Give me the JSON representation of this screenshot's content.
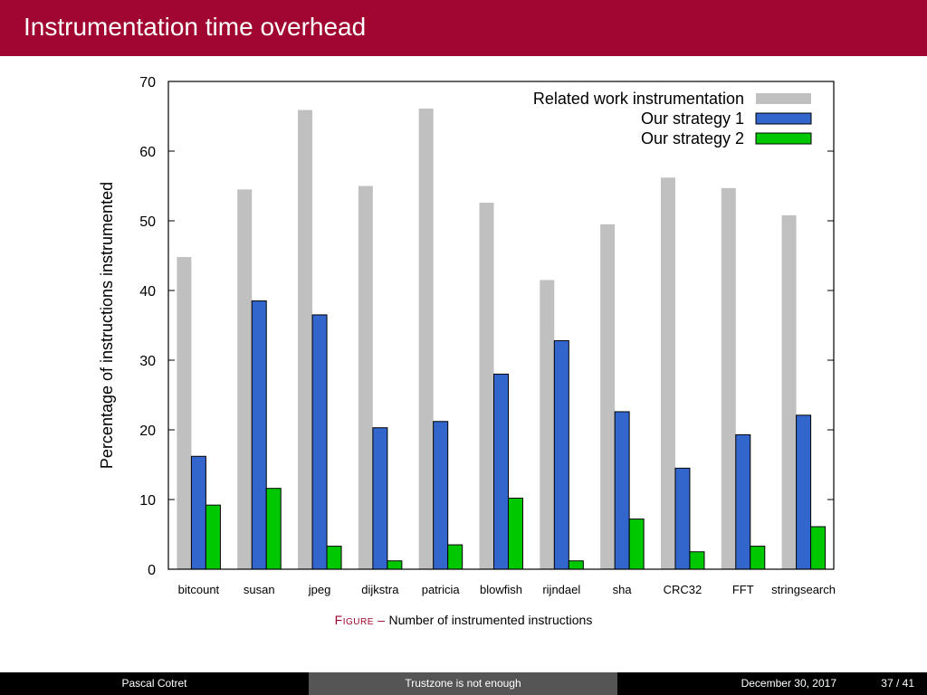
{
  "slide": {
    "title": "Instrumentation time overhead"
  },
  "caption": {
    "label": "Figure –",
    "text": "Number of instrumented instructions"
  },
  "footer": {
    "author": "Pascal Cotret",
    "talk_title": "Trustzone is not enough",
    "date": "December 30, 2017",
    "page": "37 / 41"
  },
  "colors": {
    "header_bg": "#a0062f",
    "related": "#c0c0c0",
    "strategy1": "#3366cc",
    "strategy2": "#00c800"
  },
  "chart_data": {
    "type": "bar",
    "title": "",
    "xlabel": "",
    "ylabel": "Percentage of instructions instrumented",
    "ylim": [
      0,
      70
    ],
    "yticks": [
      0,
      10,
      20,
      30,
      40,
      50,
      60,
      70
    ],
    "grid": false,
    "legend_position": "top-right",
    "categories": [
      "bitcount",
      "susan",
      "jpeg",
      "dijkstra",
      "patricia",
      "blowfish",
      "rijndael",
      "sha",
      "CRC32",
      "FFT",
      "stringsearch"
    ],
    "series": [
      {
        "name": "Related work instrumentation",
        "color": "#c0c0c0",
        "values": [
          44.8,
          54.5,
          65.9,
          55.0,
          66.1,
          52.6,
          41.5,
          49.5,
          56.2,
          54.7,
          50.8
        ]
      },
      {
        "name": "Our strategy 1",
        "color": "#3366cc",
        "values": [
          16.2,
          38.5,
          36.5,
          20.3,
          21.2,
          28.0,
          32.8,
          22.6,
          14.5,
          19.3,
          22.1
        ]
      },
      {
        "name": "Our strategy 2",
        "color": "#00c800",
        "values": [
          9.2,
          11.6,
          3.3,
          1.2,
          3.5,
          10.2,
          1.2,
          7.2,
          2.5,
          3.3,
          6.1
        ]
      }
    ]
  }
}
